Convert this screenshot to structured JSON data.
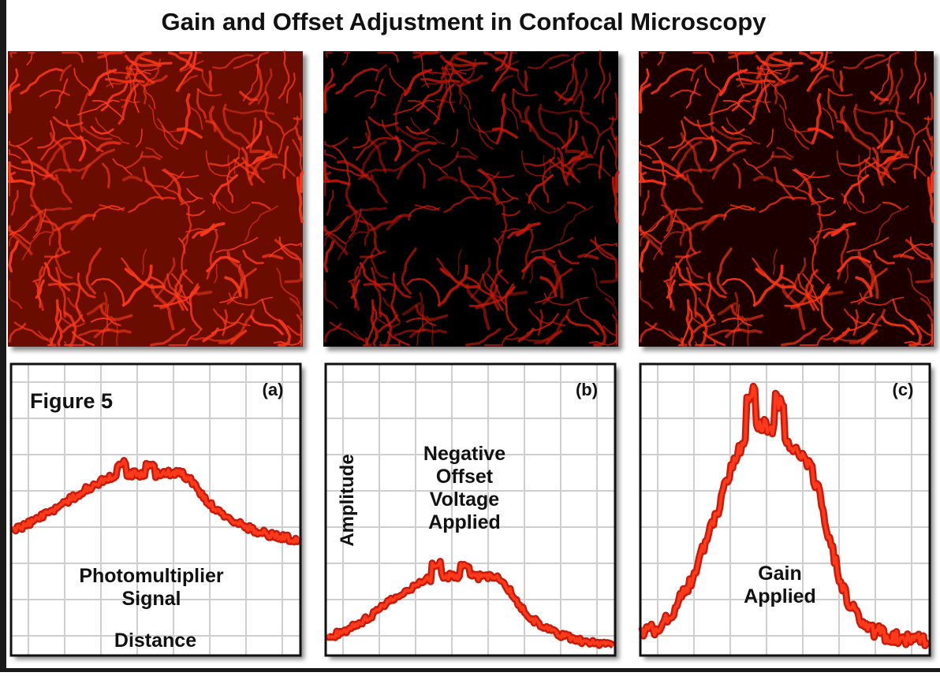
{
  "title": "Gain and Offset Adjustment in Confocal Microscopy",
  "figure_label": "Figure 5",
  "panels": [
    {
      "label": "(a)",
      "caption": [
        "Photomultiplier",
        "Signal"
      ],
      "x_axis_label": "Distance"
    },
    {
      "label": "(b)",
      "caption": [
        "Negative",
        "Offset",
        "Voltage",
        "Applied"
      ],
      "y_axis_label": "Amplitude"
    },
    {
      "label": "(c)",
      "caption": [
        "Gain",
        "Applied"
      ]
    }
  ]
}
